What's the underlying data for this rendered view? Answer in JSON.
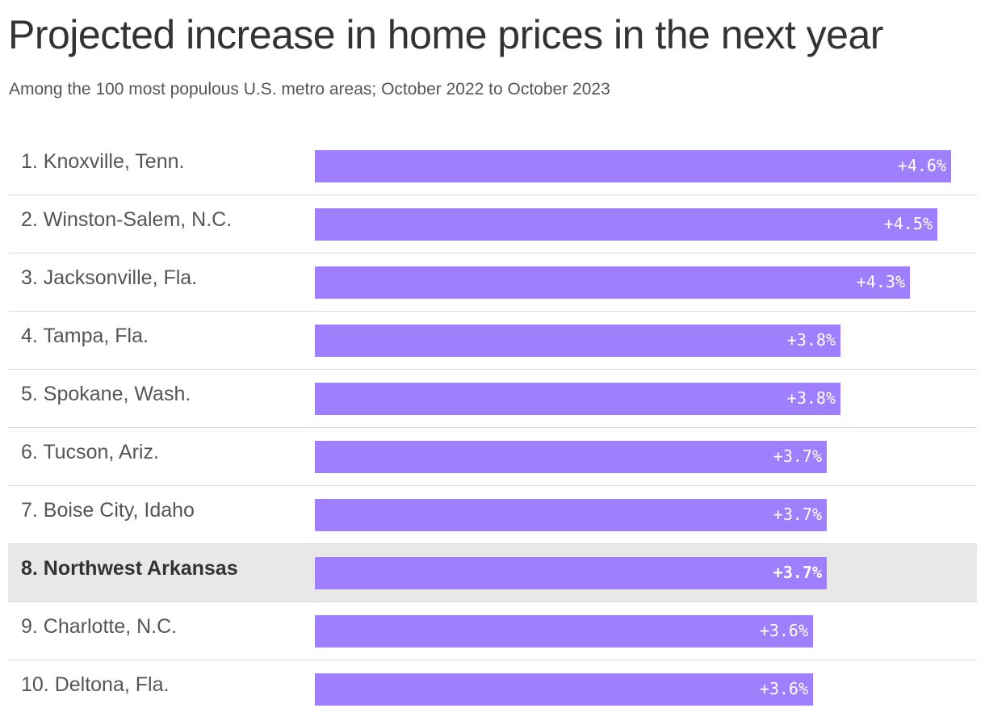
{
  "title": "Projected increase in home prices in the next year",
  "subtitle": "Among the 100 most populous U.S. metro areas; October 2022 to October 2023",
  "colors": {
    "bar": "#a07ffd",
    "highlight_row": "#e8e8e9",
    "bar_label": "#ffffff"
  },
  "chart_data": {
    "type": "bar",
    "orientation": "horizontal",
    "title": "Projected increase in home prices in the next year",
    "subtitle": "Among the 100 most populous U.S. metro areas; October 2022 to October 2023",
    "xlim": [
      0,
      4.6
    ],
    "grid": false,
    "highlight_index": 7,
    "categories": [
      "1. Knoxville, Tenn.",
      "2. Winston-Salem, N.C.",
      "3. Jacksonville, Fla.",
      "4. Tampa, Fla.",
      "5. Spokane, Wash.",
      "6. Tucson, Ariz.",
      "7. Boise City, Idaho",
      "8. Northwest Arkansas",
      "9. Charlotte, N.C.",
      "10. Deltona, Fla."
    ],
    "values": [
      4.6,
      4.5,
      4.3,
      3.8,
      3.8,
      3.7,
      3.7,
      3.7,
      3.6,
      3.6
    ],
    "value_labels": [
      "+4.6%",
      "+4.5%",
      "+4.3%",
      "+3.8%",
      "+3.8%",
      "+3.7%",
      "+3.7%",
      "+3.7%",
      "+3.6%",
      "+3.6%"
    ]
  }
}
